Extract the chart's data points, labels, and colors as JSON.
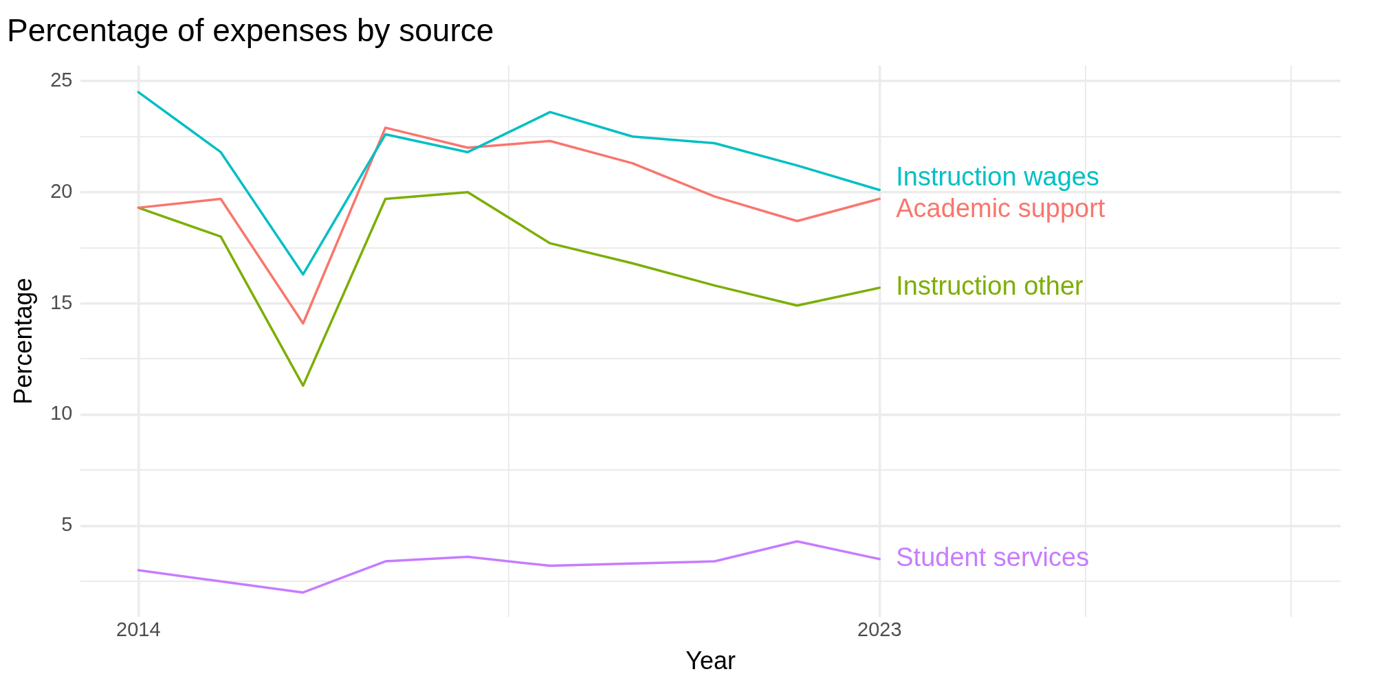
{
  "chart_data": {
    "type": "line",
    "title": "Percentage of expenses by source",
    "xlabel": "Year",
    "ylabel": "Percentage",
    "x": [
      2014,
      2015,
      2016,
      2017,
      2018,
      2019,
      2020,
      2021,
      2022,
      2023
    ],
    "series": [
      {
        "name": "Instruction wages",
        "color": "#00bfc4",
        "values": [
          24.5,
          21.8,
          16.3,
          22.6,
          21.8,
          23.6,
          22.5,
          22.2,
          21.2,
          20.1
        ]
      },
      {
        "name": "Academic support",
        "color": "#f8766d",
        "values": [
          19.3,
          19.7,
          14.1,
          22.9,
          22.0,
          22.3,
          21.3,
          19.8,
          18.7,
          19.7
        ]
      },
      {
        "name": "Instruction other",
        "color": "#7cae00",
        "values": [
          19.3,
          18.0,
          11.3,
          19.7,
          20.0,
          17.7,
          16.8,
          15.8,
          14.9,
          15.7
        ]
      },
      {
        "name": "Student services",
        "color": "#c77cff",
        "values": [
          3.0,
          2.5,
          2.0,
          3.4,
          3.6,
          3.2,
          3.3,
          3.4,
          4.3,
          3.5
        ]
      }
    ],
    "xlim": [
      2013.3,
      2028.6
    ],
    "xticks": [
      2014,
      {
        "value": 2018.5,
        "label": null
      },
      2023,
      {
        "value": 2025.5,
        "label": null
      },
      {
        "value": 2028,
        "label": null
      }
    ],
    "ylim": [
      0.9,
      25.7
    ],
    "yticks": [
      {
        "value": 2.5,
        "label": null
      },
      5,
      {
        "value": 7.5,
        "label": null
      },
      10,
      {
        "value": 12.5,
        "label": null
      },
      15,
      {
        "value": 17.5,
        "label": null
      },
      20,
      {
        "value": 22.5,
        "label": null
      },
      25
    ],
    "grid": true,
    "legend": false,
    "marker": "none",
    "line_style": "solid"
  }
}
